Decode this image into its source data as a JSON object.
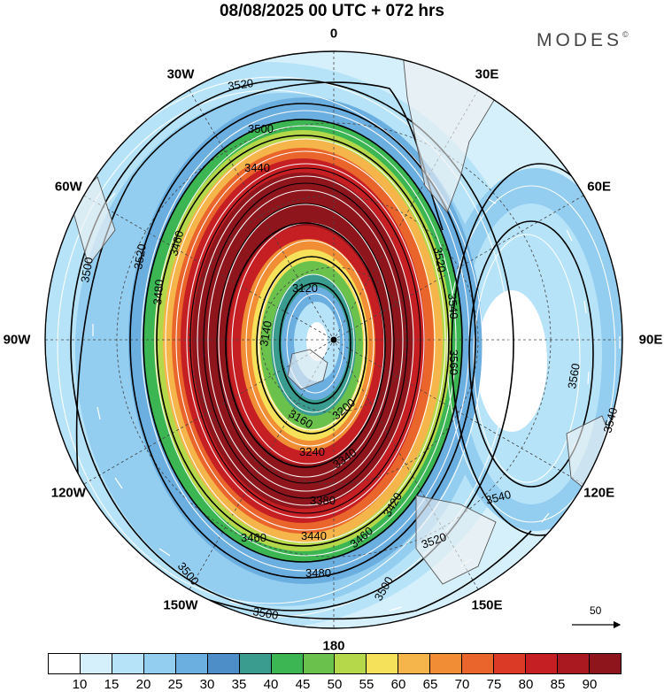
{
  "title": "08/08/2025  00 UTC  + 072 hrs",
  "brand": "MODES",
  "brand_mark": "©",
  "longitude_labels": [
    {
      "text": "0",
      "lon": 0
    },
    {
      "text": "30E",
      "lon": 30
    },
    {
      "text": "60E",
      "lon": 60
    },
    {
      "text": "90E",
      "lon": 90
    },
    {
      "text": "120E",
      "lon": 120
    },
    {
      "text": "150E",
      "lon": 150
    },
    {
      "text": "180",
      "lon": 180
    },
    {
      "text": "150W",
      "lon": 210
    },
    {
      "text": "120W",
      "lon": 240
    },
    {
      "text": "90W",
      "lon": 270
    },
    {
      "text": "60W",
      "lon": 300
    },
    {
      "text": "30W",
      "lon": 330
    }
  ],
  "contour_labels": [
    "3520",
    "3500",
    "3440",
    "3460",
    "3480",
    "3520",
    "3540",
    "3560",
    "3120",
    "3140",
    "3160",
    "3200",
    "3240",
    "3340",
    "3380",
    "3440",
    "3460",
    "3500",
    "3520",
    "3540",
    "3560",
    "3540",
    "3500",
    "3480",
    "3460",
    "3420",
    "3500",
    "3520",
    "3500"
  ],
  "wind_scale": {
    "label": "50"
  },
  "colorbar": {
    "colors": [
      "#ffffff",
      "#d6f0fb",
      "#b7e3f8",
      "#93cdef",
      "#6baee0",
      "#4e8ec8",
      "#3a9c8e",
      "#3cb553",
      "#6ac24c",
      "#b5d84a",
      "#f6e25a",
      "#f5b54b",
      "#f18e35",
      "#e9652b",
      "#db3a26",
      "#c51f24",
      "#aa1820",
      "#8f151c"
    ],
    "ticks": [
      "10",
      "15",
      "20",
      "25",
      "30",
      "35",
      "40",
      "45",
      "50",
      "55",
      "60",
      "65",
      "70",
      "75",
      "80",
      "85",
      "90"
    ]
  }
}
